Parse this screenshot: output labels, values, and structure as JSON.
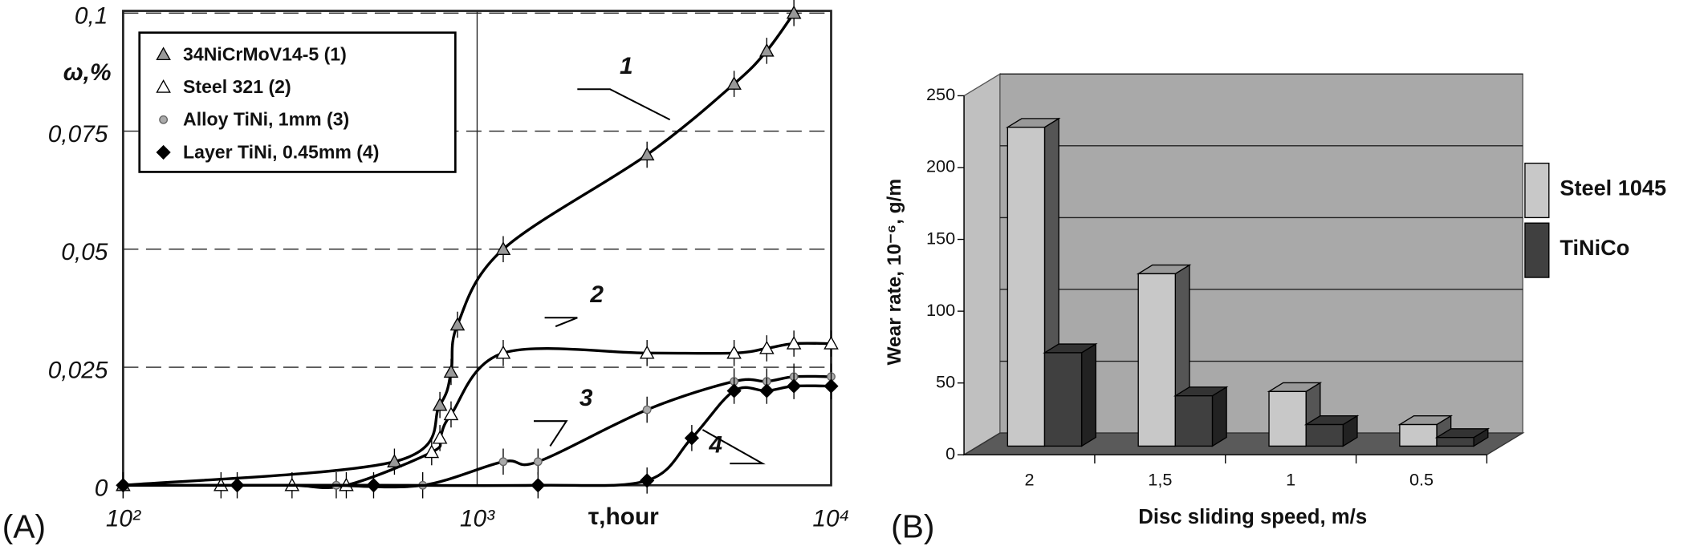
{
  "chart_data": [
    {
      "type": "line",
      "panel": "(A)",
      "y_label": "ω,%",
      "x_label": "τ,hour",
      "log_x": true,
      "xlim": [
        100,
        10000
      ],
      "ylim": [
        0,
        0.1
      ],
      "xticks": [
        {
          "value": 100,
          "label": "10²"
        },
        {
          "value": 1000,
          "label": "10³"
        },
        {
          "value": 10000,
          "label": "10⁴"
        }
      ],
      "yticks": [
        0,
        {
          "value": 0.025,
          "label": "0,025"
        },
        {
          "value": 0.05,
          "label": "0,05"
        },
        {
          "value": 0.075,
          "label": "0,075"
        },
        {
          "value": 0.1,
          "label": "0,1"
        }
      ],
      "grid": true,
      "legend": "upper left",
      "series": [
        {
          "name": "34NiCrMoV14-5 (1)",
          "marker": "triangle",
          "color": "#999999",
          "x": [
            100,
            584,
            785,
            844,
            880,
            1185,
            3020,
            5320,
            6580,
            7850
          ],
          "values": [
            0,
            0.005,
            0.017,
            0.024,
            0.034,
            0.05,
            0.07,
            0.085,
            0.092,
            0.1
          ]
        },
        {
          "name": "Steel 321 (2)",
          "marker": "triangle",
          "color": "#ffffff",
          "x": [
            189,
            300,
            427,
            744,
            785,
            844,
            1185,
            3020,
            5320,
            6580,
            7850,
            10000
          ],
          "values": [
            0,
            0,
            0,
            0.007,
            0.01,
            0.015,
            0.028,
            0.028,
            0.028,
            0.029,
            0.03,
            0.03
          ]
        },
        {
          "name": "Alloy TiNi, 1mm (3)",
          "marker": "circle",
          "color": "#aaaaaa",
          "x": [
            400,
            702,
            1185,
            1486,
            3020,
            5320,
            6580,
            7850,
            10000
          ],
          "values": [
            0,
            0,
            0.005,
            0.005,
            0.016,
            0.022,
            0.022,
            0.023,
            0.023
          ]
        },
        {
          "name": "Layer TiNi, 0.45mm (4)",
          "marker": "diamond",
          "color": "#000000",
          "x": [
            100,
            210,
            510,
            1486,
            3020,
            4040,
            5320,
            6580,
            7850,
            10000
          ],
          "values": [
            0,
            0,
            0,
            0,
            0.001,
            0.01,
            0.02,
            0.02,
            0.021,
            0.021
          ]
        }
      ],
      "annotations": [
        {
          "text": "1"
        },
        {
          "text": "2"
        },
        {
          "text": "3"
        },
        {
          "text": "4"
        }
      ]
    },
    {
      "type": "bar3d",
      "panel": "(B)",
      "y_label": "Wear rate, 10⁻⁶, g/m",
      "x_label": "Disc sliding speed, m/s",
      "categories": [
        "2",
        "1,5",
        "1",
        "0.5"
      ],
      "ylim": [
        0,
        250
      ],
      "yticks": [
        0,
        50,
        100,
        150,
        200,
        250
      ],
      "grid": true,
      "legend": "right",
      "series": [
        {
          "name": "Steel 1045",
          "color": "#c8c8c8",
          "values": [
            222,
            120,
            38,
            15
          ]
        },
        {
          "name": "TiNiCo",
          "color": "#404040",
          "values": [
            65,
            35,
            15,
            6
          ]
        }
      ]
    }
  ]
}
